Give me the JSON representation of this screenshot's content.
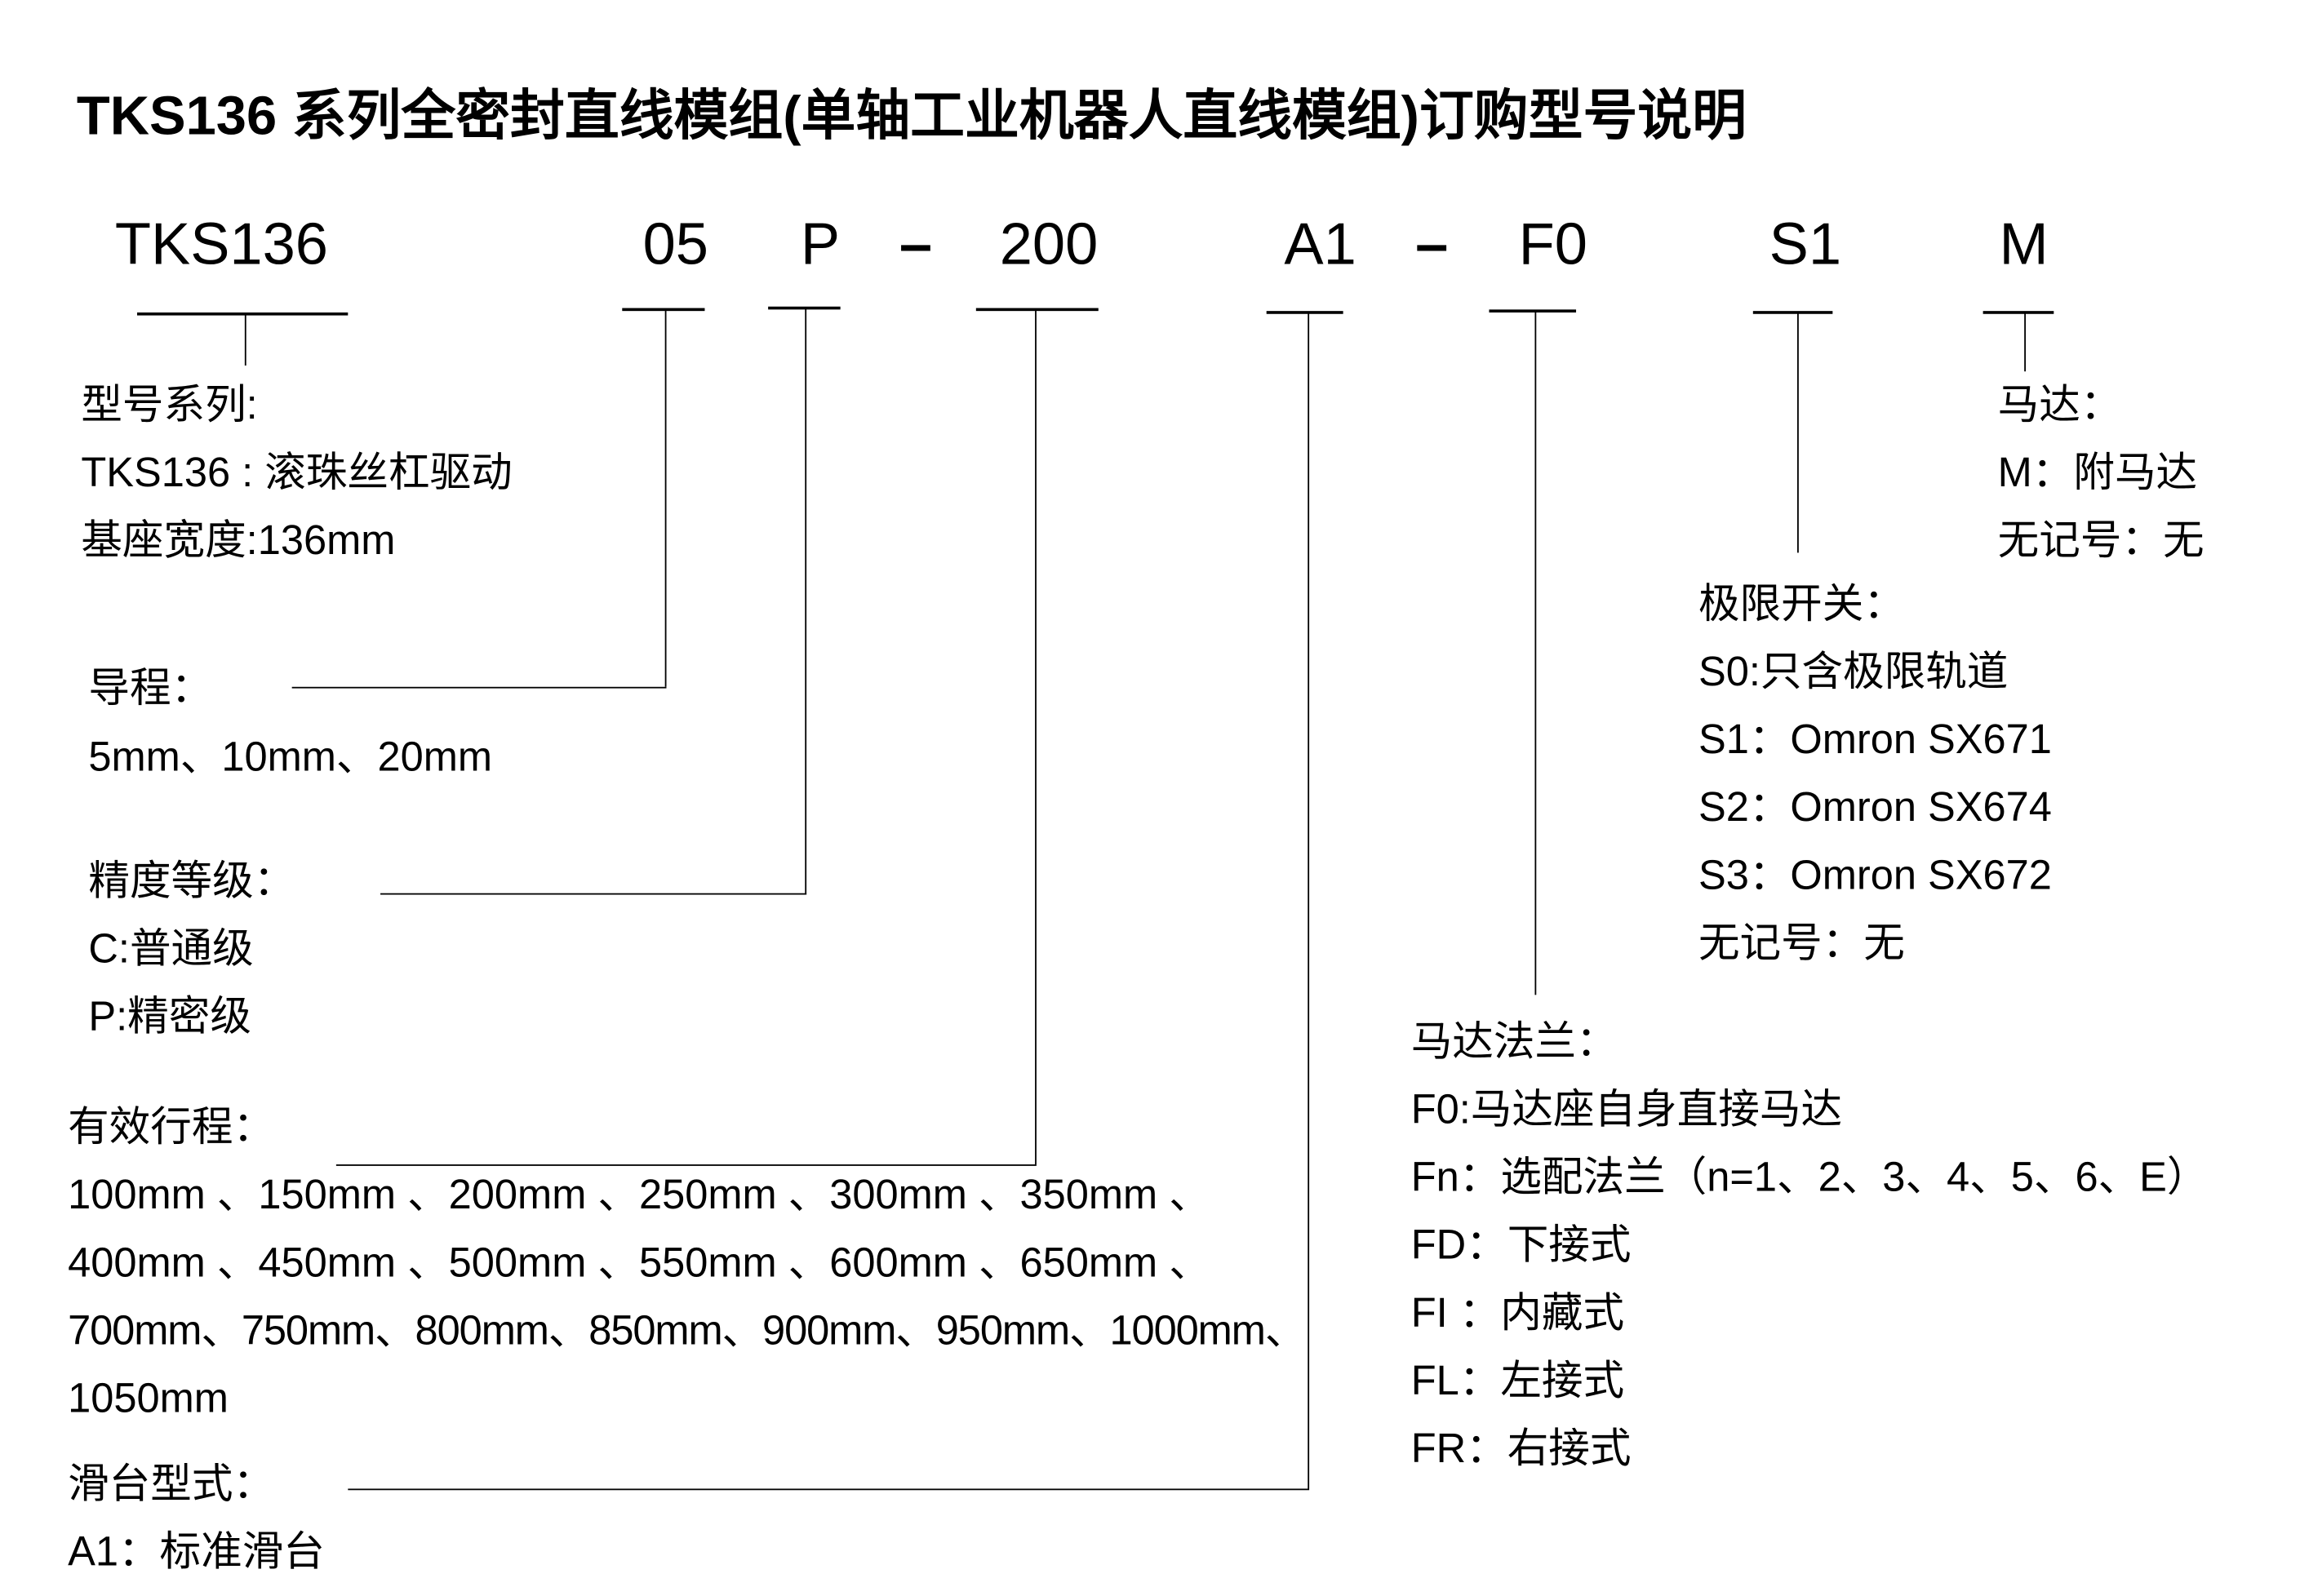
{
  "title": "TKS136 系列全密封直线模组(单轴工业机器人直线模组)订购型号说明",
  "code": {
    "series": "TKS136",
    "lead": "05",
    "precision": "P",
    "dash1": "–",
    "stroke": "200",
    "slide": "A1",
    "dash2": "–",
    "flange": "F0",
    "switch": "S1",
    "motor": "M"
  },
  "series_block": [
    "型号系列:",
    "TKS136 : 滚珠丝杠驱动",
    "基座宽度:136mm"
  ],
  "lead_block": [
    "导程：",
    "5mm、10mm、20mm"
  ],
  "precision_block": [
    "精度等级：",
    "C:普通级",
    "P:精密级"
  ],
  "stroke_block": [
    "有效行程：",
    "100mm 、150mm 、200mm 、250mm 、300mm 、350mm 、",
    "400mm 、450mm 、500mm 、550mm 、600mm 、650mm 、",
    "700mm、750mm、800mm、850mm、900mm、950mm、1000mm、",
    "1050mm"
  ],
  "slide_block": [
    "滑台型式：",
    "A1：标准滑台"
  ],
  "motor_block": [
    "马达：",
    "M：附马达",
    "无记号：无"
  ],
  "switch_block": [
    "极限开关：",
    "S0:只含极限轨道",
    "S1：Omron SX671",
    "S2：Omron SX674",
    "S3：Omron SX672",
    "无记号：无"
  ],
  "flange_block": [
    "马达法兰：",
    "F0:马达座自身直接马达",
    "Fn：选配法兰（n=1、2、3、4、5、6、E）",
    "FD：下接式",
    "FI ：内藏式",
    "FL：左接式",
    "FR：右接式"
  ]
}
